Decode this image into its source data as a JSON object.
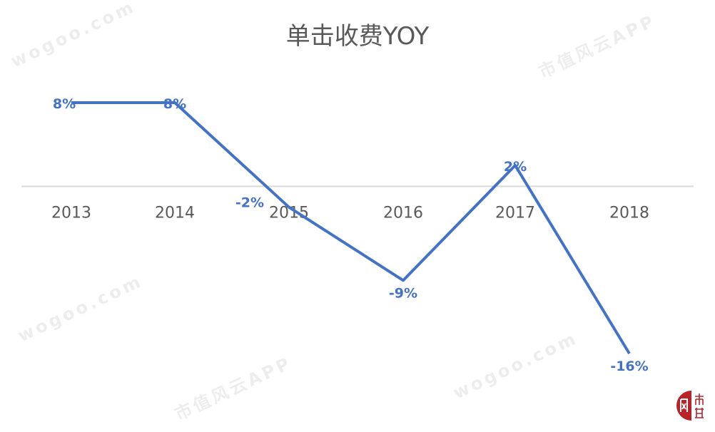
{
  "chart_data": {
    "type": "line",
    "title": "单击收费YOY",
    "categories": [
      "2013",
      "2014",
      "2015",
      "2016",
      "2017",
      "2018"
    ],
    "series": [
      {
        "values": [
          8,
          8,
          -2,
          -9,
          2,
          -16
        ]
      }
    ],
    "data_labels": [
      "8%",
      "8%",
      "-2%",
      "-9%",
      "2%",
      "-16%"
    ],
    "ylim": [
      -19,
      11
    ],
    "grid": false,
    "legend": "none",
    "colors": {
      "line": "#4472C4",
      "label": "#4472C4",
      "axis": "#D9D9D9",
      "tick_text": "#595959",
      "title": "#595959"
    }
  },
  "watermark": {
    "texts": [
      "wogoo.com",
      "市值风云APP"
    ]
  },
  "logo": {
    "text": "市值",
    "color": "#B8232A"
  }
}
